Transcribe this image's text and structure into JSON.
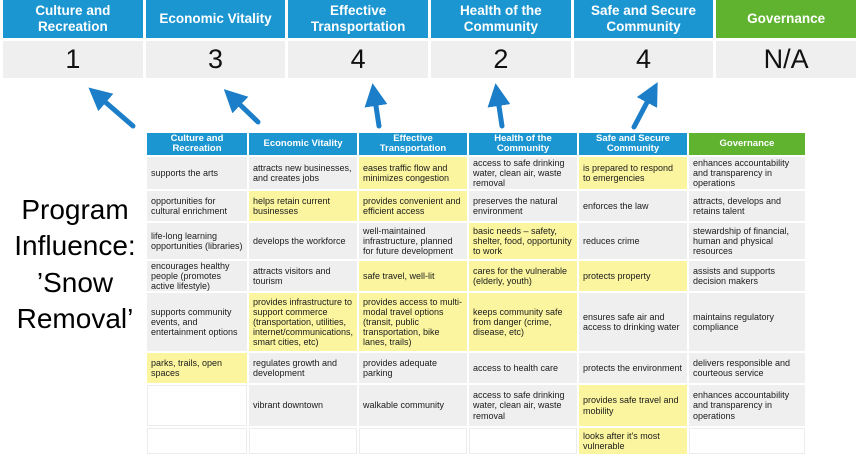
{
  "program_label": "Program\nInfluence:\n’Snow\nRemoval’",
  "colors": {
    "header_blue": "#1B96D1",
    "governance_green": "#5FB32F",
    "highlight_yellow": "#FBF5A0",
    "cell_gray": "#EFEFEF",
    "score_bg": "#EFEFEF",
    "arrow_blue": "#1C7EC8"
  },
  "priorities": [
    {
      "name": "Culture and Recreation",
      "score": "1"
    },
    {
      "name": "Economic Vitality",
      "score": "3"
    },
    {
      "name": "Effective Transportation",
      "score": "4"
    },
    {
      "name": "Health of the Community",
      "score": "2"
    },
    {
      "name": "Safe and Secure Community",
      "score": "4"
    },
    {
      "name": "Governance",
      "score": "N/A"
    }
  ],
  "matrix": {
    "columns": [
      "Culture and Recreation",
      "Economic Vitality",
      "Effective Transportation",
      "Health of the Community",
      "Safe and Secure Community",
      "Governance"
    ],
    "rows": [
      [
        {
          "text": "supports the arts",
          "hl": false
        },
        {
          "text": "attracts new businesses, and creates jobs",
          "hl": false
        },
        {
          "text": "eases traffic flow and minimizes congestion",
          "hl": true
        },
        {
          "text": "access to safe drinking water, clean air, waste removal",
          "hl": false
        },
        {
          "text": "is prepared to respond to emergencies",
          "hl": true
        },
        {
          "text": "enhances accountability and transparency in operations",
          "hl": false
        }
      ],
      [
        {
          "text": "opportunities for cultural enrichment",
          "hl": false
        },
        {
          "text": "helps retain current businesses",
          "hl": true
        },
        {
          "text": "provides convenient and efficient access",
          "hl": true
        },
        {
          "text": "preserves the natural environment",
          "hl": false
        },
        {
          "text": "enforces the law",
          "hl": false
        },
        {
          "text": "attracts, develops and retains talent",
          "hl": false
        }
      ],
      [
        {
          "text": "life-long learning opportunities (libraries)",
          "hl": false
        },
        {
          "text": "develops the workforce",
          "hl": false
        },
        {
          "text": "well-maintained infrastructure, planned for future development",
          "hl": false
        },
        {
          "text": "basic needs – safety, shelter, food, opportunity to work",
          "hl": true
        },
        {
          "text": "reduces crime",
          "hl": false
        },
        {
          "text": "stewardship of financial, human and physical resources",
          "hl": false
        }
      ],
      [
        {
          "text": "encourages healthy people (promotes active lifestyle)",
          "hl": false
        },
        {
          "text": "attracts visitors and tourism",
          "hl": false
        },
        {
          "text": "safe travel, well-lit",
          "hl": true
        },
        {
          "text": "cares for the vulnerable (elderly, youth)",
          "hl": true
        },
        {
          "text": "protects property",
          "hl": true
        },
        {
          "text": "assists and supports decision makers",
          "hl": false
        }
      ],
      [
        {
          "text": "supports community events, and entertainment options",
          "hl": false
        },
        {
          "text": "provides infrastructure to support commerce (transportation, utilities, internet/communications, smart cities, etc)",
          "hl": true
        },
        {
          "text": "provides access to multi-modal travel options (transit, public transportation, bike lanes, trails)",
          "hl": true
        },
        {
          "text": "keeps community safe from danger (crime, disease, etc)",
          "hl": true
        },
        {
          "text": "ensures safe air and access to drinking water",
          "hl": false
        },
        {
          "text": "maintains regulatory compliance",
          "hl": false
        }
      ],
      [
        {
          "text": "parks, trails, open spaces",
          "hl": true
        },
        {
          "text": "regulates growth and development",
          "hl": false
        },
        {
          "text": "provides adequate parking",
          "hl": false
        },
        {
          "text": "access to health care",
          "hl": false
        },
        {
          "text": "protects the environment",
          "hl": false
        },
        {
          "text": "delivers responsible and courteous service",
          "hl": false
        }
      ],
      [
        {
          "text": "",
          "hl": false
        },
        {
          "text": "vibrant downtown",
          "hl": false
        },
        {
          "text": "walkable community",
          "hl": false
        },
        {
          "text": "access to safe drinking water, clean air, waste removal",
          "hl": false
        },
        {
          "text": "provides safe travel and mobility",
          "hl": true
        },
        {
          "text": "enhances accountability and transparency in operations",
          "hl": false
        }
      ],
      [
        {
          "text": "",
          "hl": false
        },
        {
          "text": "",
          "hl": false
        },
        {
          "text": "",
          "hl": false
        },
        {
          "text": "",
          "hl": false
        },
        {
          "text": "looks after it's most vulnerable",
          "hl": true
        },
        {
          "text": "",
          "hl": false
        }
      ]
    ]
  }
}
